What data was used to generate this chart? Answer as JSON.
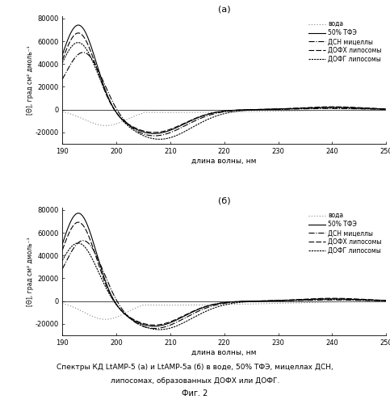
{
  "title_a": "(а)",
  "title_b": "(б)",
  "xlabel": "длина волны, нм",
  "ylabel": "[Θ], град см² дмоль⁻¹",
  "xlim": [
    190,
    250
  ],
  "ylim": [
    -30000,
    82000
  ],
  "xticks": [
    190,
    200,
    210,
    220,
    230,
    240,
    250
  ],
  "yticks": [
    -20000,
    0,
    20000,
    40000,
    60000,
    80000
  ],
  "legend_labels": [
    "вода",
    "50% ТФЭ",
    "ДСН мицеллы",
    "ДОФХ липосомы",
    "ДОФГ липосомы"
  ],
  "caption_line1": "Спектры КД LtАМР-5 (а) и LtАМР-5а (б) в воде, 50% ТФЭ, мицеллах ДСН,",
  "caption_line2": "липосомах, образованных ДОФХ или ДОФГ.",
  "fig_label": "Фиг. 2",
  "background_color": "#ffffff"
}
